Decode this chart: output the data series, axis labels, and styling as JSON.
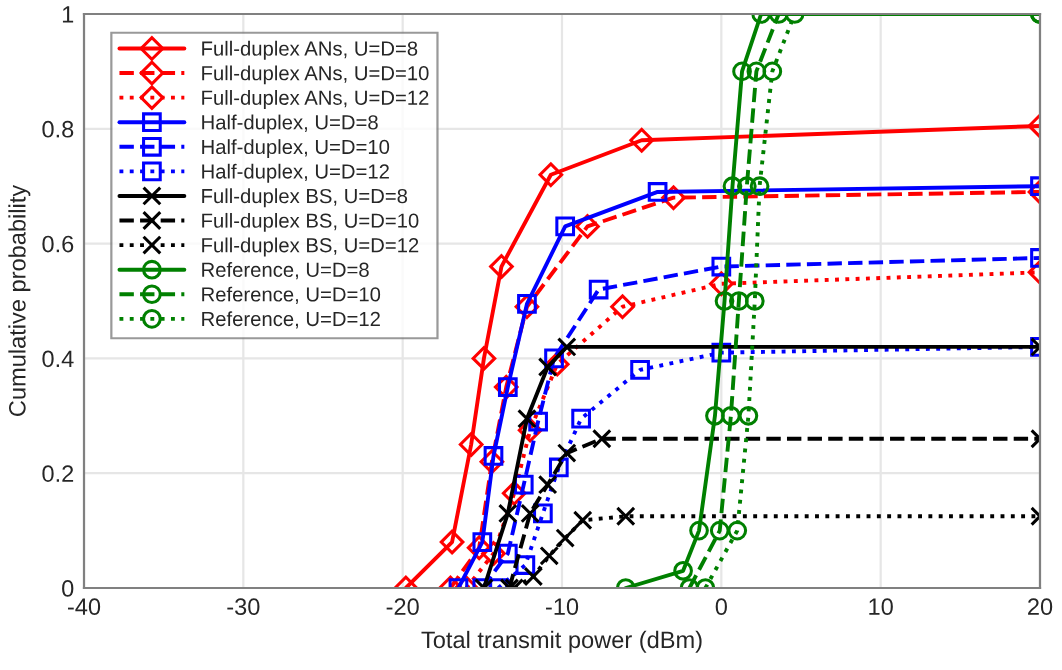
{
  "chart_data": {
    "type": "line",
    "xlabel": "Total transmit power (dBm)",
    "ylabel": "Cumulative probability",
    "xlim": [
      -40,
      20
    ],
    "xticks": [
      -40,
      -30,
      -20,
      -10,
      0,
      10,
      20
    ],
    "ylim": [
      0,
      1
    ],
    "yticks": [
      0,
      0.2,
      0.4,
      0.6,
      0.8,
      1
    ],
    "grid": true,
    "legend": "top left",
    "series": [
      {
        "name": "Full-duplex ANs, U=D=8",
        "color": "#ff0000",
        "marker": "diamond",
        "line_style": "solid",
        "x": [
          -19.8,
          -16.9,
          -15.7,
          -14.9,
          -13.8,
          -10.7,
          -5,
          20
        ],
        "values": [
          0,
          0.08,
          0.25,
          0.4,
          0.56,
          0.72,
          0.78,
          0.805
        ]
      },
      {
        "name": "Full-duplex ANs, U=D=10",
        "color": "#ff0000",
        "marker": "diamond",
        "line_style": "dashed",
        "x": [
          -17,
          -15.2,
          -14.4,
          -13.5,
          -12.2,
          -8.4,
          -3,
          20
        ],
        "values": [
          0,
          0.07,
          0.22,
          0.35,
          0.49,
          0.63,
          0.68,
          0.69
        ]
      },
      {
        "name": "Full-duplex ANs, U=D=12",
        "color": "#ff0000",
        "marker": "diamond",
        "line_style": "dotted",
        "x": [
          -16,
          -14.3,
          -13.0,
          -12.0,
          -10.3,
          -6.2,
          0,
          20
        ],
        "values": [
          0,
          0.06,
          0.165,
          0.275,
          0.39,
          0.49,
          0.53,
          0.55
        ]
      },
      {
        "name": "Half-duplex, U=D=8",
        "color": "#0000ff",
        "marker": "square",
        "line_style": "solid",
        "x": [
          -16.5,
          -15,
          -14.3,
          -13.4,
          -12.2,
          -9.8,
          -4,
          20
        ],
        "values": [
          0,
          0.08,
          0.23,
          0.35,
          0.495,
          0.63,
          0.69,
          0.7
        ]
      },
      {
        "name": "Half-duplex, U=D=10",
        "color": "#0000ff",
        "marker": "square",
        "line_style": "dashed",
        "x": [
          -15,
          -13.4,
          -12.4,
          -11.5,
          -10.5,
          -7.7,
          0,
          20
        ],
        "values": [
          0,
          0.06,
          0.18,
          0.29,
          0.4,
          0.52,
          0.56,
          0.575
        ]
      },
      {
        "name": "Half-duplex, U=D=12",
        "color": "#0000ff",
        "marker": "square",
        "line_style": "dotted",
        "x": [
          -14,
          -12.3,
          -11.2,
          -10.2,
          -8.8,
          -5.1,
          0,
          20
        ],
        "values": [
          0,
          0.04,
          0.13,
          0.21,
          0.295,
          0.38,
          0.41,
          0.42
        ]
      },
      {
        "name": "Full-duplex BS, U=D=8",
        "color": "#000000",
        "marker": "cross",
        "line_style": "solid",
        "x": [
          -14.9,
          -13.4,
          -12.2,
          -10.9,
          -9.7,
          20
        ],
        "values": [
          0,
          0.13,
          0.295,
          0.385,
          0.42,
          0.42
        ]
      },
      {
        "name": "Full-duplex BS, U=D=10",
        "color": "#000000",
        "marker": "cross",
        "line_style": "dashed",
        "x": [
          -13.3,
          -12.0,
          -10.9,
          -9.7,
          -7.5,
          20
        ],
        "values": [
          0,
          0.13,
          0.18,
          0.235,
          0.26,
          0.26
        ]
      },
      {
        "name": "Full-duplex BS, U=D=12",
        "color": "#000000",
        "marker": "cross",
        "line_style": "dotted",
        "x": [
          -13,
          -11.8,
          -10.8,
          -9.8,
          -8.7,
          -6,
          20
        ],
        "values": [
          0,
          0.02,
          0.056,
          0.087,
          0.118,
          0.125,
          0.125
        ]
      },
      {
        "name": "Reference, U=D=8",
        "color": "#008000",
        "marker": "circle",
        "line_style": "solid",
        "x": [
          -6,
          -2.4,
          -1.4,
          -0.4,
          0.2,
          0.7,
          1.3,
          2.5,
          20
        ],
        "values": [
          0,
          0.03,
          0.1,
          0.3,
          0.5,
          0.7,
          0.9,
          1,
          1
        ]
      },
      {
        "name": "Reference, U=D=10",
        "color": "#008000",
        "marker": "circle",
        "line_style": "dashed",
        "x": [
          -2,
          -0.1,
          0.6,
          1.1,
          1.6,
          2.2,
          3.6,
          20
        ],
        "values": [
          0,
          0.1,
          0.3,
          0.5,
          0.7,
          0.9,
          1,
          1
        ]
      },
      {
        "name": "Reference, U=D=12",
        "color": "#008000",
        "marker": "circle",
        "line_style": "dotted",
        "x": [
          -1,
          1.0,
          1.7,
          2.1,
          2.4,
          3.2,
          4.6,
          20
        ],
        "values": [
          0,
          0.1,
          0.3,
          0.5,
          0.7,
          0.9,
          1,
          1
        ]
      }
    ]
  }
}
